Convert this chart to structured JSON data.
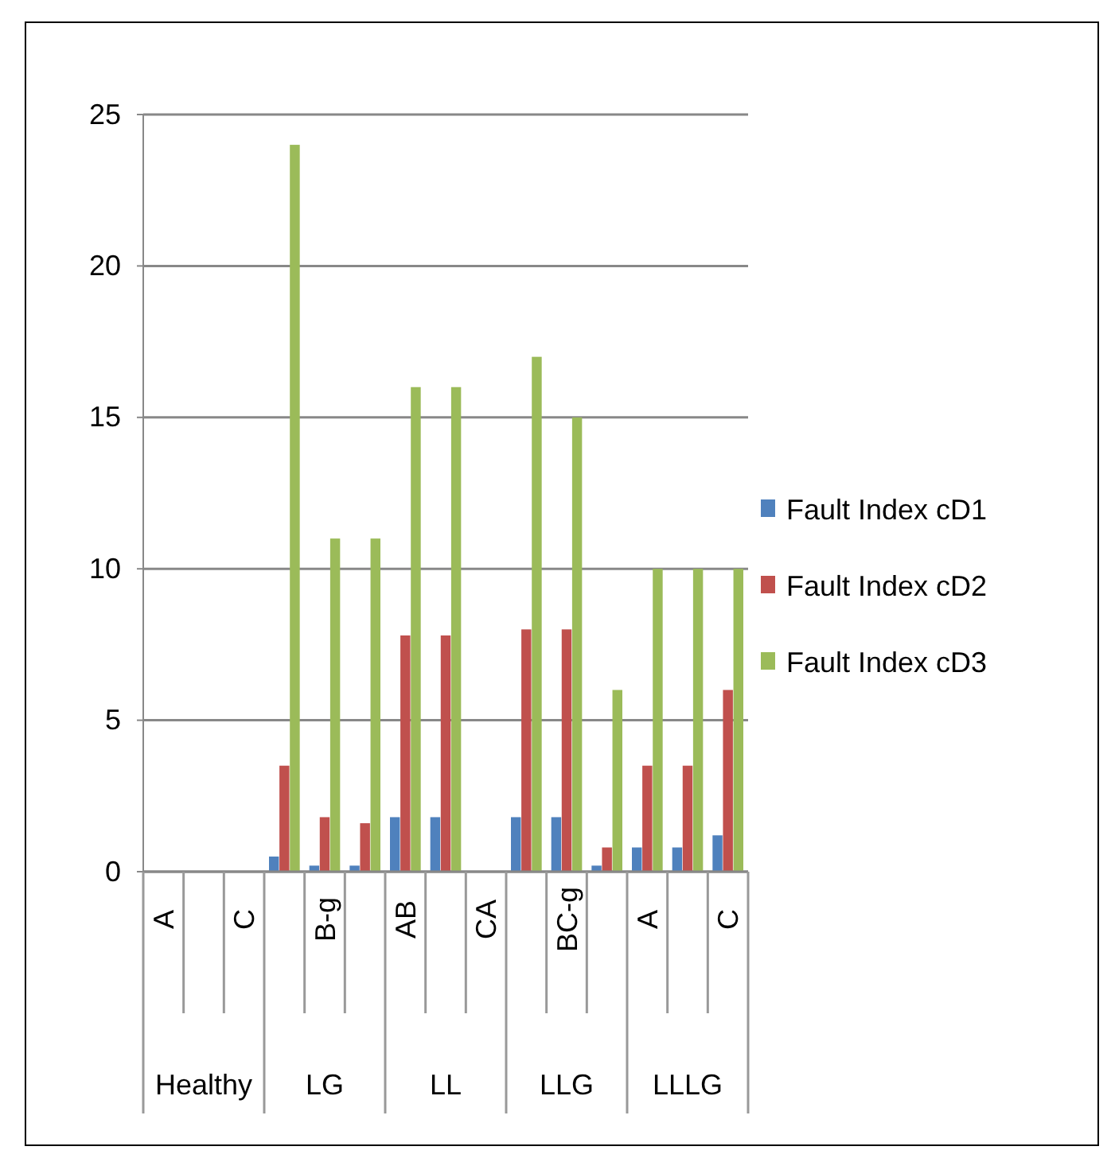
{
  "chart_data": {
    "type": "bar",
    "categories": [
      "A",
      null,
      "C",
      null,
      "B-g",
      null,
      "AB",
      null,
      "CA",
      null,
      "BC-g",
      null,
      "A",
      null,
      "C"
    ],
    "series": [
      {
        "name": "Fault Index cD1",
        "color": "#4f81bd",
        "values": [
          0,
          0,
          0,
          0.5,
          0.2,
          0.2,
          1.8,
          1.8,
          0,
          1.8,
          1.8,
          0.2,
          0.8,
          0.8,
          1.2
        ]
      },
      {
        "name": "Fault Index cD2",
        "color": "#c0504d",
        "values": [
          0,
          0,
          0,
          3.5,
          1.8,
          1.6,
          7.8,
          7.8,
          0,
          8,
          8,
          0.8,
          3.5,
          3.5,
          6
        ]
      },
      {
        "name": "Fault Index cD3",
        "color": "#9bbb59",
        "values": [
          0,
          0,
          0,
          24,
          11,
          11,
          16,
          16,
          0,
          17,
          15,
          6,
          10,
          10,
          10
        ]
      }
    ],
    "annotations": [
      "Healthy",
      "LG",
      "LL",
      "LLG",
      "LLLG"
    ],
    "ylim": [
      0,
      25
    ],
    "yticks": [
      0,
      5,
      10,
      15,
      20,
      25
    ],
    "grid": "y",
    "legend": "right"
  }
}
